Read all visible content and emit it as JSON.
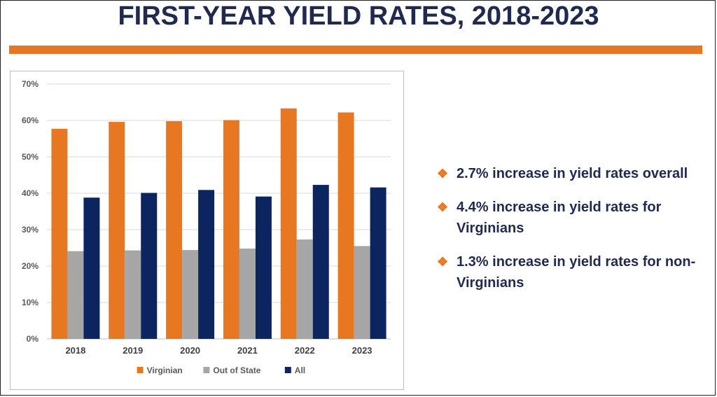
{
  "slide": {
    "title": "FIRST-YEAR YIELD RATES, 2018-2023",
    "accent_color": "#e87722",
    "title_color": "#1f2a4e"
  },
  "bullets": [
    {
      "icon": "diamond-cluster-icon",
      "text": "2.7% increase in yield rates overall"
    },
    {
      "icon": "diamond-cluster-icon",
      "text": "4.4% increase in yield rates for Virginians"
    },
    {
      "icon": "diamond-cluster-icon",
      "text": "1.3% increase in yield rates for non-Virginians"
    }
  ],
  "chart_data": {
    "type": "bar",
    "title": "",
    "xlabel": "",
    "ylabel": "",
    "categories": [
      "2018",
      "2019",
      "2020",
      "2021",
      "2022",
      "2023"
    ],
    "series": [
      {
        "name": "Virginian",
        "color": "#e87722",
        "values": [
          57.7,
          59.6,
          59.8,
          60.1,
          63.3,
          62.2
        ]
      },
      {
        "name": "Out of State",
        "color": "#a6a6a6",
        "values": [
          24.1,
          24.3,
          24.4,
          24.8,
          27.3,
          25.5
        ]
      },
      {
        "name": "All",
        "color": "#0c2560",
        "values": [
          38.8,
          40.1,
          40.9,
          39.1,
          42.3,
          41.6
        ]
      }
    ],
    "ylim": [
      0,
      70
    ],
    "yticks": [
      0,
      10,
      20,
      30,
      40,
      50,
      60,
      70
    ],
    "ytick_labels": [
      "0%",
      "10%",
      "20%",
      "30%",
      "40%",
      "50%",
      "60%",
      "70%"
    ],
    "grid": true,
    "legend_position": "bottom"
  }
}
